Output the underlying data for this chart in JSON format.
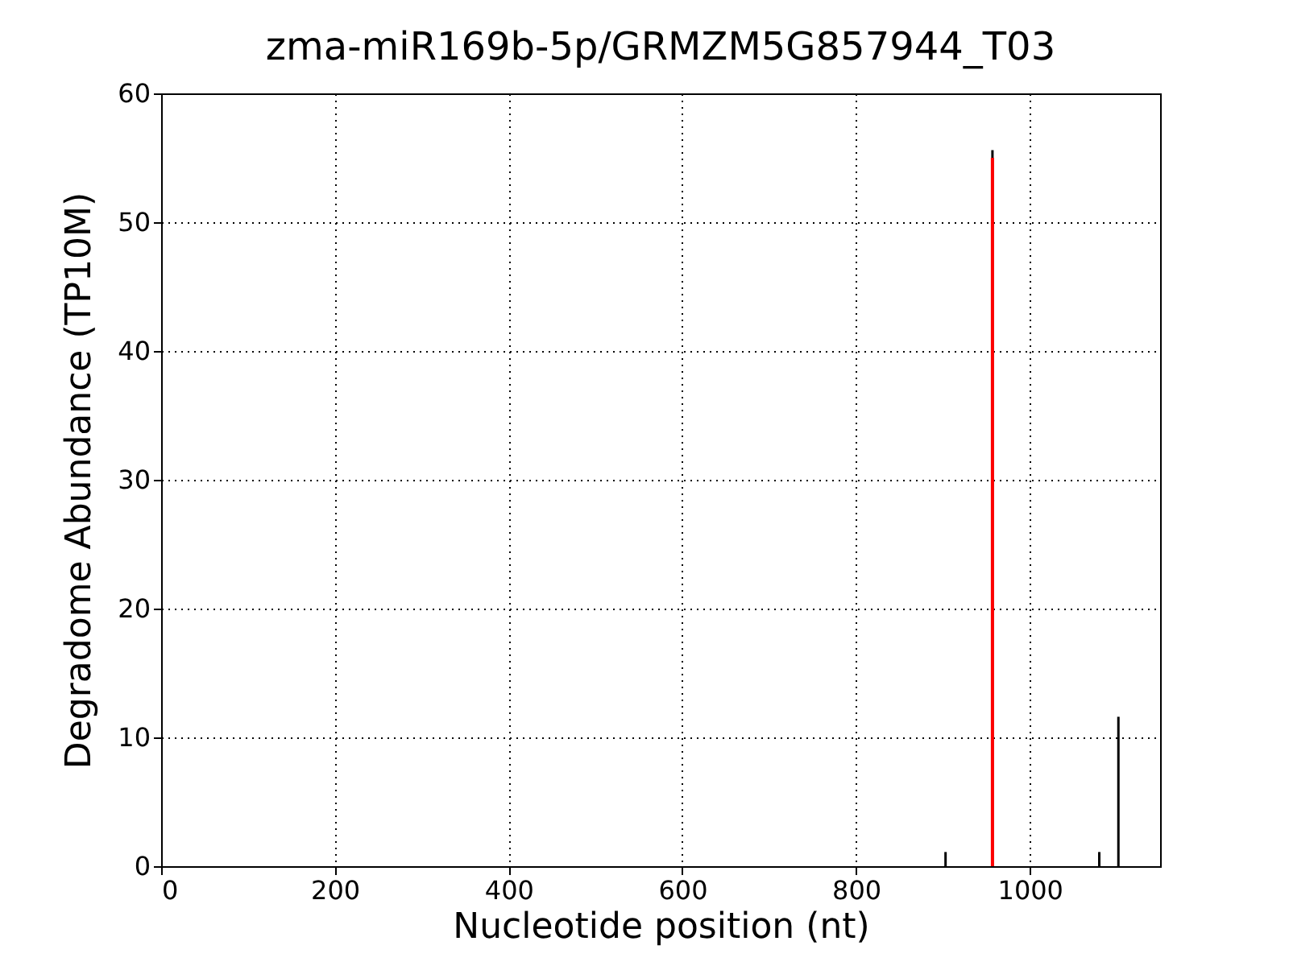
{
  "chart_data": {
    "type": "bar",
    "title": "zma-miR169b-5p/GRMZM5G857944_T03",
    "xlabel": "Nucleotide position (nt)",
    "ylabel": "Degradome Abundance (TP10M)",
    "series": [
      {
        "x": [
          903,
          957,
          1080,
          1102
        ],
        "values": [
          1.1,
          55.6,
          1.1,
          11.6
        ],
        "color": "#000000"
      },
      {
        "x": [
          957
        ],
        "values": [
          55
        ],
        "color": "#ff0000"
      }
    ],
    "xlim": [
      0,
      1150
    ],
    "xticks": [
      0,
      200,
      400,
      600,
      800,
      1000
    ],
    "ylim": [
      0,
      60
    ],
    "yticks": [
      0,
      10,
      20,
      30,
      40,
      50,
      60
    ],
    "grid": true
  }
}
